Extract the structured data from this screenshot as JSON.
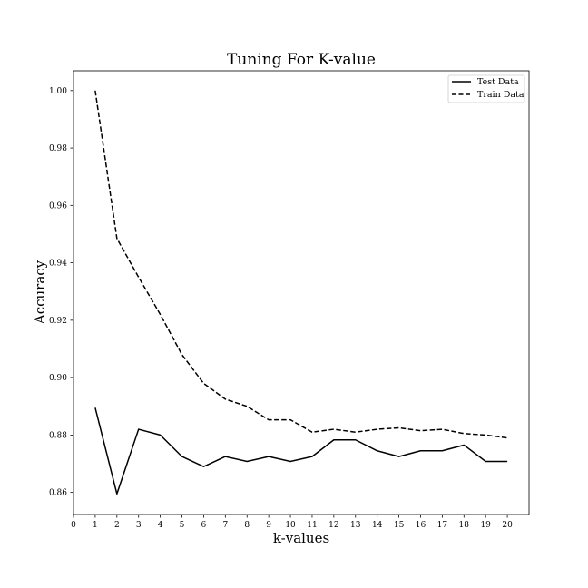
{
  "chart_data": {
    "type": "line",
    "title": "Tuning For K-value",
    "xlabel": "k-values",
    "ylabel": "Accuracy",
    "xlim": [
      0,
      21
    ],
    "ylim": [
      0.8523,
      1.0069
    ],
    "xticks": [
      0,
      1,
      2,
      3,
      4,
      5,
      6,
      7,
      8,
      9,
      10,
      11,
      12,
      13,
      14,
      15,
      16,
      17,
      18,
      19,
      20
    ],
    "yticks": [
      0.86,
      0.88,
      0.9,
      0.92,
      0.94,
      0.96,
      0.98,
      1.0
    ],
    "ytick_labels": [
      "0.86",
      "0.88",
      "0.90",
      "0.92",
      "0.94",
      "0.96",
      "0.98",
      "1.00"
    ],
    "legend_position": "top-right",
    "grid": false,
    "x": [
      1,
      2,
      3,
      4,
      5,
      6,
      7,
      8,
      9,
      10,
      11,
      12,
      13,
      14,
      15,
      16,
      17,
      18,
      19,
      20
    ],
    "series": [
      {
        "name": "Test Data",
        "style": "solid",
        "color": "#000000",
        "values": [
          0.8895,
          0.8595,
          0.882,
          0.88,
          0.8725,
          0.869,
          0.8725,
          0.8708,
          0.8725,
          0.8708,
          0.8725,
          0.8783,
          0.8783,
          0.8745,
          0.8725,
          0.8745,
          0.8745,
          0.8765,
          0.8708,
          0.8708
        ]
      },
      {
        "name": "Train Data",
        "style": "dashed",
        "color": "#000000",
        "values": [
          1.0,
          0.9485,
          0.935,
          0.922,
          0.908,
          0.898,
          0.8925,
          0.89,
          0.8853,
          0.8853,
          0.881,
          0.882,
          0.881,
          0.882,
          0.8825,
          0.8815,
          0.882,
          0.8805,
          0.88,
          0.879
        ]
      }
    ]
  }
}
